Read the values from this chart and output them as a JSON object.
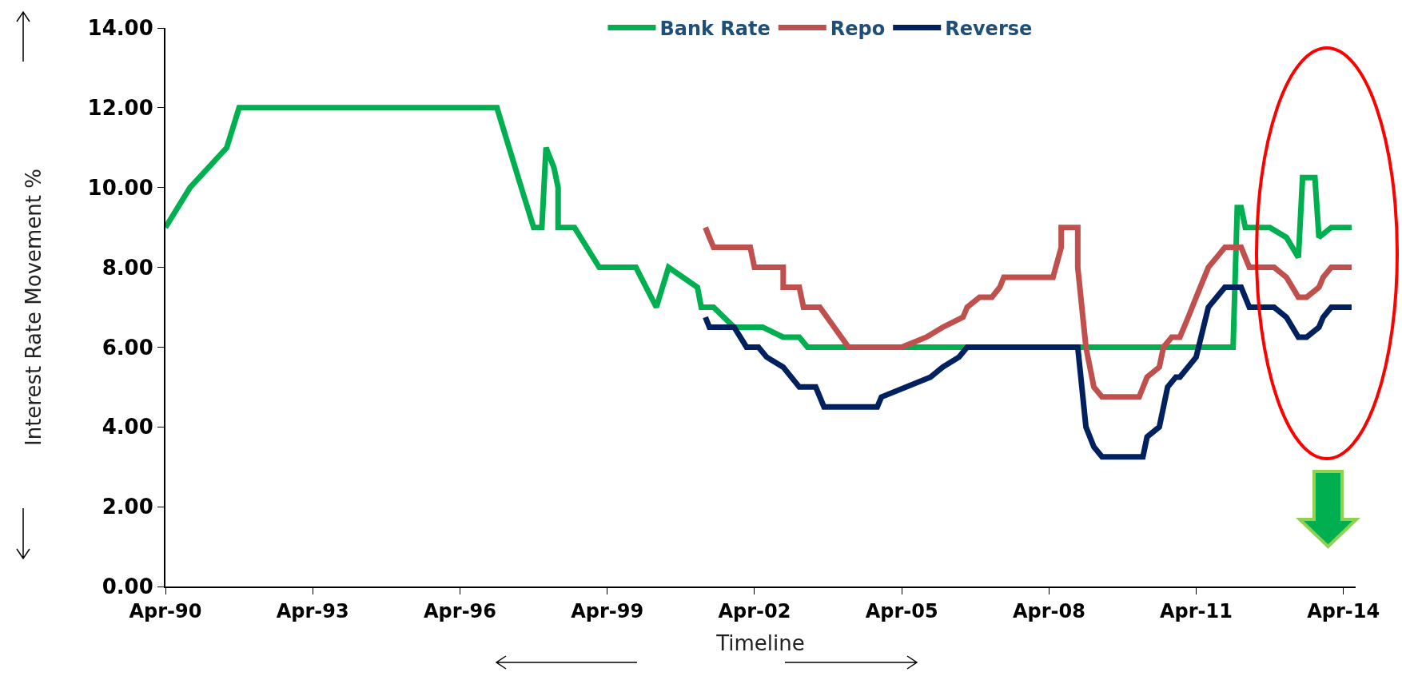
{
  "chart_data": {
    "type": "line",
    "ylabel": "Interest Rate Movement %",
    "xlabel": "Timeline",
    "xlim": [
      "1990-04",
      "2014-07"
    ],
    "xticks": [
      {
        "value": "1990-04",
        "label": "Apr-90"
      },
      {
        "value": "1993-04",
        "label": "Apr-93"
      },
      {
        "value": "1996-04",
        "label": "Apr-96"
      },
      {
        "value": "1999-04",
        "label": "Apr-99"
      },
      {
        "value": "2002-04",
        "label": "Apr-02"
      },
      {
        "value": "2005-04",
        "label": "Apr-05"
      },
      {
        "value": "2008-04",
        "label": "Apr-08"
      },
      {
        "value": "2011-04",
        "label": "Apr-11"
      },
      {
        "value": "2014-04",
        "label": "Apr-14"
      }
    ],
    "ylim": [
      0,
      14
    ],
    "yticks": [
      {
        "value": 0,
        "label": "0.00"
      },
      {
        "value": 2,
        "label": "2.00"
      },
      {
        "value": 4,
        "label": "4.00"
      },
      {
        "value": 6,
        "label": "6.00"
      },
      {
        "value": 8,
        "label": "8.00"
      },
      {
        "value": 10,
        "label": "10.00"
      },
      {
        "value": 12,
        "label": "12.00"
      },
      {
        "value": 14,
        "label": "14.00"
      }
    ],
    "grid": false,
    "legend": "top",
    "marker": "none",
    "line_style": "solid",
    "series": [
      {
        "name": "Bank Rate",
        "color": "#00b050",
        "x": [
          "1990-04",
          "1990-10",
          "1991-07",
          "1991-10",
          "1997-01",
          "1997-04",
          "1997-07",
          "1997-10",
          "1997-12",
          "1998-01",
          "1998-03",
          "1998-04",
          "1998-04",
          "1998-08",
          "1999-02",
          "1999-11",
          "2000-04",
          "2000-07",
          "2001-02",
          "2001-03",
          "2001-06",
          "2001-11",
          "2002-06",
          "2002-11",
          "2003-03",
          "2003-05",
          "2012-01",
          "2012-02",
          "2012-03",
          "2012-04",
          "2012-10",
          "2013-02",
          "2013-05",
          "2013-06",
          "2013-09",
          "2013-10",
          "2014-01",
          "2014-06"
        ],
        "values": [
          9,
          10,
          11,
          12,
          12,
          11,
          10,
          9,
          9,
          11,
          10.5,
          10,
          9,
          9,
          8,
          8,
          7,
          8,
          7.5,
          7,
          7,
          6.5,
          6.5,
          6.25,
          6.25,
          6,
          6,
          9.5,
          9.5,
          9,
          9,
          8.75,
          8.25,
          10.25,
          10.25,
          8.75,
          9,
          9
        ]
      },
      {
        "name": "Repo",
        "color": "#c0504d",
        "x": [
          "2001-04",
          "2001-05",
          "2001-06",
          "2002-03",
          "2002-04",
          "2002-11",
          "2002-11",
          "2003-03",
          "2003-04",
          "2003-08",
          "2004-03",
          "2005-04",
          "2005-10",
          "2006-02",
          "2006-07",
          "2006-08",
          "2006-11",
          "2007-02",
          "2007-04",
          "2007-05",
          "2008-05",
          "2008-07",
          "2008-07",
          "2008-11",
          "2008-11",
          "2009-01",
          "2009-03",
          "2009-05",
          "2010-02",
          "2010-04",
          "2010-07",
          "2010-08",
          "2010-10",
          "2010-12",
          "2011-02",
          "2011-04",
          "2011-07",
          "2011-11",
          "2012-03",
          "2012-05",
          "2012-11",
          "2013-02",
          "2013-05",
          "2013-07",
          "2013-10",
          "2013-11",
          "2014-01",
          "2014-06"
        ],
        "values": [
          9,
          8.75,
          8.5,
          8.5,
          8,
          8,
          7.5,
          7.5,
          7,
          7,
          6,
          6,
          6.25,
          6.5,
          6.75,
          7,
          7.25,
          7.25,
          7.5,
          7.75,
          7.75,
          8.5,
          9,
          9,
          8,
          6,
          5,
          4.75,
          4.75,
          5.25,
          5.5,
          6,
          6.25,
          6.25,
          6.75,
          7.25,
          8,
          8.5,
          8.5,
          8,
          8,
          7.75,
          7.25,
          7.25,
          7.5,
          7.75,
          8,
          8
        ]
      },
      {
        "name": "Reverse",
        "color": "#002060",
        "x": [
          "2001-04",
          "2001-05",
          "2001-11",
          "2002-02",
          "2002-05",
          "2002-07",
          "2002-11",
          "2003-03",
          "2003-07",
          "2003-09",
          "2004-10",
          "2004-11",
          "2005-11",
          "2006-02",
          "2006-06",
          "2006-08",
          "2008-11",
          "2009-01",
          "2009-03",
          "2009-05",
          "2010-03",
          "2010-04",
          "2010-07",
          "2010-09",
          "2010-11",
          "2010-12",
          "2011-04",
          "2011-07",
          "2011-11",
          "2012-03",
          "2012-05",
          "2012-11",
          "2013-02",
          "2013-05",
          "2013-07",
          "2013-10",
          "2013-11",
          "2014-01",
          "2014-06"
        ],
        "values": [
          6.75,
          6.5,
          6.5,
          6,
          6,
          5.75,
          5.5,
          5,
          5,
          4.5,
          4.5,
          4.75,
          5.25,
          5.5,
          5.75,
          6,
          6,
          4,
          3.5,
          3.25,
          3.25,
          3.75,
          4,
          5,
          5.25,
          5.25,
          5.75,
          7,
          7.5,
          7.5,
          7,
          7,
          6.75,
          6.25,
          6.25,
          6.5,
          6.75,
          7,
          7
        ]
      }
    ]
  }
}
